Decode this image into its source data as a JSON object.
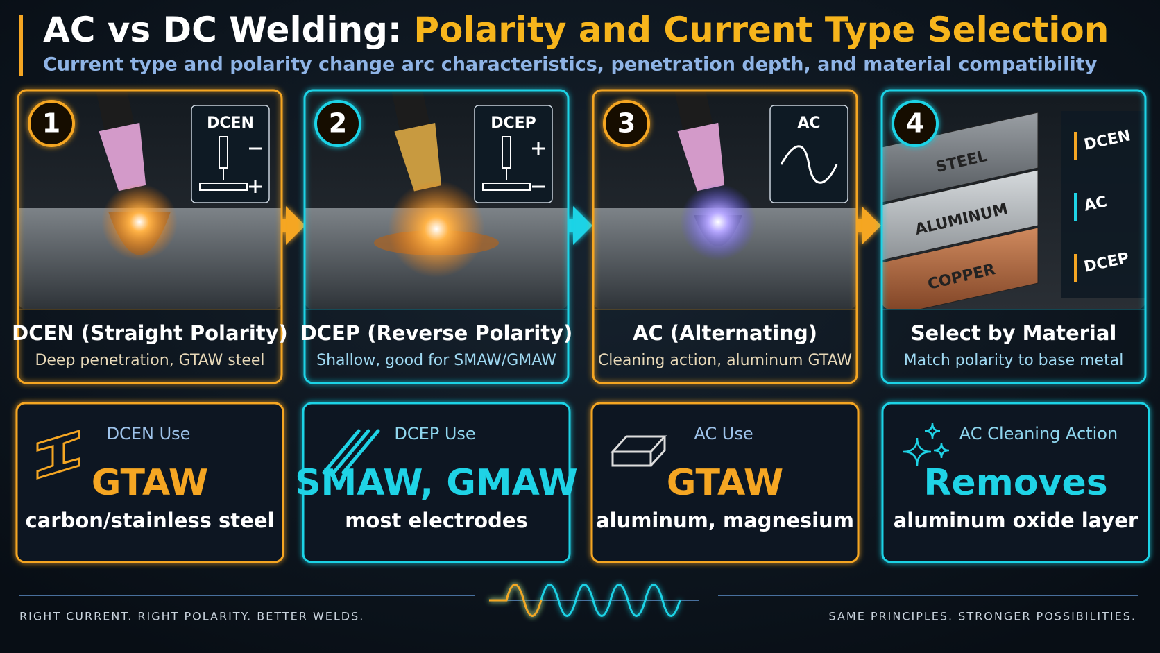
{
  "header": {
    "title_part1": "AC vs DC Welding:",
    "title_part2": "Polarity and Current Type Selection",
    "subtitle": "Current type and polarity change arc characteristics, penetration depth, and material compatibility"
  },
  "panels": [
    {
      "number": "1",
      "badge": "DCEN",
      "heading": "DCEN (Straight Polarity)",
      "caption": "Deep penetration, GTAW steel"
    },
    {
      "number": "2",
      "badge": "DCEP",
      "heading": "DCEP (Reverse Polarity)",
      "caption": "Shallow, good for SMAW/GMAW"
    },
    {
      "number": "3",
      "badge": "AC",
      "heading": "AC (Alternating)",
      "caption": "Cleaning action, aluminum GTAW"
    },
    {
      "number": "4",
      "heading": "Select by Material",
      "caption": "Match polarity to base metal",
      "materials": [
        "STEEL",
        "ALUMINUM",
        "COPPER"
      ],
      "polarities": [
        "DCEN",
        "AC",
        "DCEP"
      ]
    }
  ],
  "cards": [
    {
      "label": "DCEN Use",
      "headline": "GTAW",
      "detail": "carbon/stainless steel"
    },
    {
      "label": "DCEP Use",
      "headline": "SMAW, GMAW",
      "detail": "most electrodes"
    },
    {
      "label": "AC Use",
      "headline": "GTAW",
      "detail": "aluminum, magnesium"
    },
    {
      "label": "AC Cleaning Action",
      "headline": "Removes",
      "detail": "aluminum oxide layer"
    }
  ],
  "footer": {
    "left": "RIGHT CURRENT. RIGHT POLARITY. BETTER WELDS.",
    "right": "SAME PRINCIPLES. STRONGER POSSIBILITIES."
  }
}
